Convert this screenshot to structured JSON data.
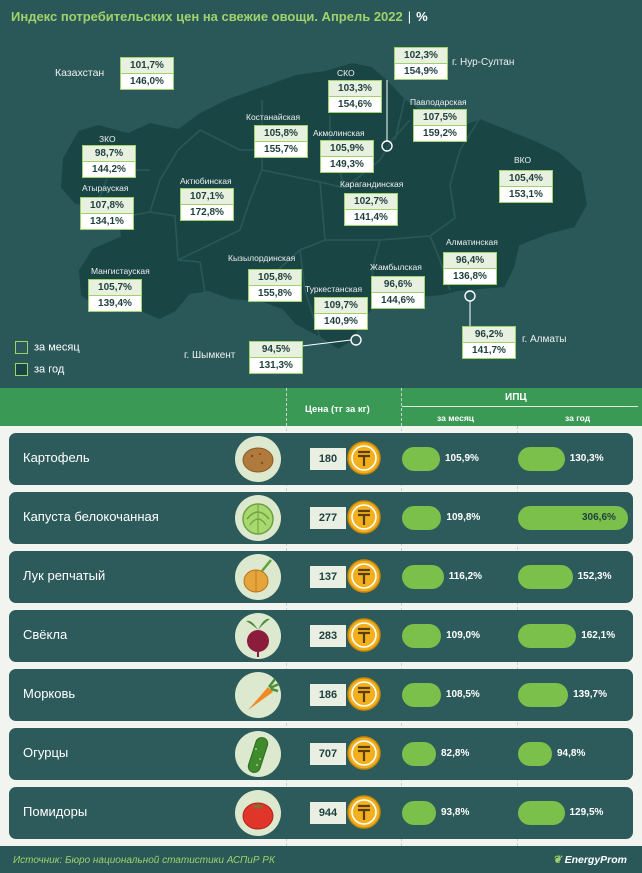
{
  "title": "Индекс потребительских цен на свежие овощи. Апрель 2022",
  "title_unit": "%",
  "colors": {
    "accent": "#9fd26a",
    "bar": "#7bc04a",
    "header": "#3a9a55",
    "background": "#2a5858"
  },
  "map": {
    "regions": [
      {
        "name": "Казахстан",
        "month": "101,7%",
        "year": "146,0%"
      },
      {
        "name": "г. Нур-Султан",
        "month": "102,3%",
        "year": "154,9%"
      },
      {
        "name": "СКО",
        "month": "103,3%",
        "year": "154,6%"
      },
      {
        "name": "Павлодарская",
        "month": "107,5%",
        "year": "159,2%"
      },
      {
        "name": "Костанайская",
        "month": "105,8%",
        "year": "155,7%"
      },
      {
        "name": "Акмолинская",
        "month": "105,9%",
        "year": "149,3%"
      },
      {
        "name": "ЗКО",
        "month": "98,7%",
        "year": "144,2%"
      },
      {
        "name": "ВКО",
        "month": "105,4%",
        "year": "153,1%"
      },
      {
        "name": "Актюбинская",
        "month": "107,1%",
        "year": "172,8%"
      },
      {
        "name": "Атырауская",
        "month": "107,8%",
        "year": "134,1%"
      },
      {
        "name": "Карагандинская",
        "month": "102,7%",
        "year": "141,4%"
      },
      {
        "name": "Алматинская",
        "month": "96,4%",
        "year": "136,8%"
      },
      {
        "name": "Мангистауская",
        "month": "105,7%",
        "year": "139,4%"
      },
      {
        "name": "Кызылординская",
        "month": "105,8%",
        "year": "155,8%"
      },
      {
        "name": "Жамбылская",
        "month": "96,6%",
        "year": "144,6%"
      },
      {
        "name": "Туркестанская",
        "month": "109,7%",
        "year": "140,9%"
      },
      {
        "name": "г. Алматы",
        "month": "96,2%",
        "year": "141,7%"
      },
      {
        "name": "г. Шымкент",
        "month": "94,5%",
        "year": "131,3%"
      }
    ],
    "legend": {
      "month": "за месяц",
      "year": "за год"
    }
  },
  "table": {
    "price_header": "Цена (тг за кг)",
    "cpi_header": "ИПЦ",
    "month_header": "за месяц",
    "year_header": "за год",
    "rows": [
      {
        "name": "Картофель",
        "icon": "potato-icon",
        "price": "180",
        "month_label": "105,9%",
        "year_label": "130,3%"
      },
      {
        "name": "Капуста белокочанная",
        "icon": "cabbage-icon",
        "price": "277",
        "month_label": "109,8%",
        "year_label": "306,6%"
      },
      {
        "name": "Лук репчатый",
        "icon": "onion-icon",
        "price": "137",
        "month_label": "116,2%",
        "year_label": "152,3%"
      },
      {
        "name": "Свёкла",
        "icon": "beet-icon",
        "price": "283",
        "month_label": "109,0%",
        "year_label": "162,1%"
      },
      {
        "name": "Морковь",
        "icon": "carrot-icon",
        "price": "186",
        "month_label": "108,5%",
        "year_label": "139,7%"
      },
      {
        "name": "Огурцы",
        "icon": "cucumber-icon",
        "price": "707",
        "month_label": "82,8%",
        "year_label": "94,8%"
      },
      {
        "name": "Помидоры",
        "icon": "tomato-icon",
        "price": "944",
        "month_label": "93,8%",
        "year_label": "129,5%"
      }
    ]
  },
  "chart_data": {
    "type": "bar",
    "title": "Индекс потребительских цен на свежие овощи. Апрель 2022",
    "categories": [
      "Картофель",
      "Капуста белокочанная",
      "Лук репчатый",
      "Свёкла",
      "Морковь",
      "Огурцы",
      "Помидоры"
    ],
    "series": [
      {
        "name": "за месяц",
        "values": [
          105.9,
          109.8,
          116.2,
          109.0,
          108.5,
          82.8,
          93.8
        ]
      },
      {
        "name": "за год",
        "values": [
          130.3,
          306.6,
          152.3,
          162.1,
          139.7,
          94.8,
          129.5
        ]
      }
    ],
    "prices": [
      180,
      277,
      137,
      283,
      186,
      707,
      944
    ],
    "ylabel": "%",
    "legend": "none"
  },
  "footer": {
    "source": "Источник: Бюро национальной статистики АСПиР РК",
    "brand": "EnergyProm"
  }
}
